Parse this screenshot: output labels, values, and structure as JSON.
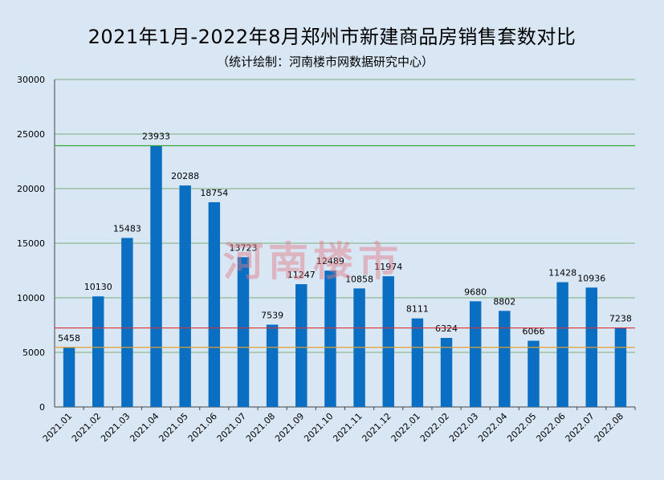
{
  "chart_data": {
    "type": "bar",
    "title": "2021年1月-2022年8月郑州市新建商品房销售套数对比",
    "subtitle": "（统计绘制：河南楼市网数据研究中心）",
    "watermark": "河南楼市",
    "categories": [
      "2021.01",
      "2021.02",
      "2021.03",
      "2021.04",
      "2021.05",
      "2021.06",
      "2021.07",
      "2021.08",
      "2021.09",
      "2021.10",
      "2021.11",
      "2021.12",
      "2022.01",
      "2022.02",
      "2022.03",
      "2022.04",
      "2022.05",
      "2022.06",
      "2022.07",
      "2022.08"
    ],
    "values": [
      5458,
      10130,
      15483,
      23933,
      20288,
      18754,
      13723,
      7539,
      11247,
      12489,
      10858,
      11974,
      8111,
      6324,
      9680,
      8802,
      6066,
      11428,
      10936,
      7238
    ],
    "ylim": [
      0,
      30000
    ],
    "yticks": [
      0,
      5000,
      10000,
      15000,
      20000,
      25000,
      30000
    ],
    "grid": true,
    "reference_lines": [
      {
        "value": 23933,
        "color": "#3aa53a"
      },
      {
        "value": 7238,
        "color": "#d9333a"
      },
      {
        "value": 5458,
        "color": "#e0a030"
      }
    ],
    "colors": {
      "bar": "#0a6fc2",
      "grid": "#7cae7c",
      "background": "#d9e7f5"
    }
  }
}
